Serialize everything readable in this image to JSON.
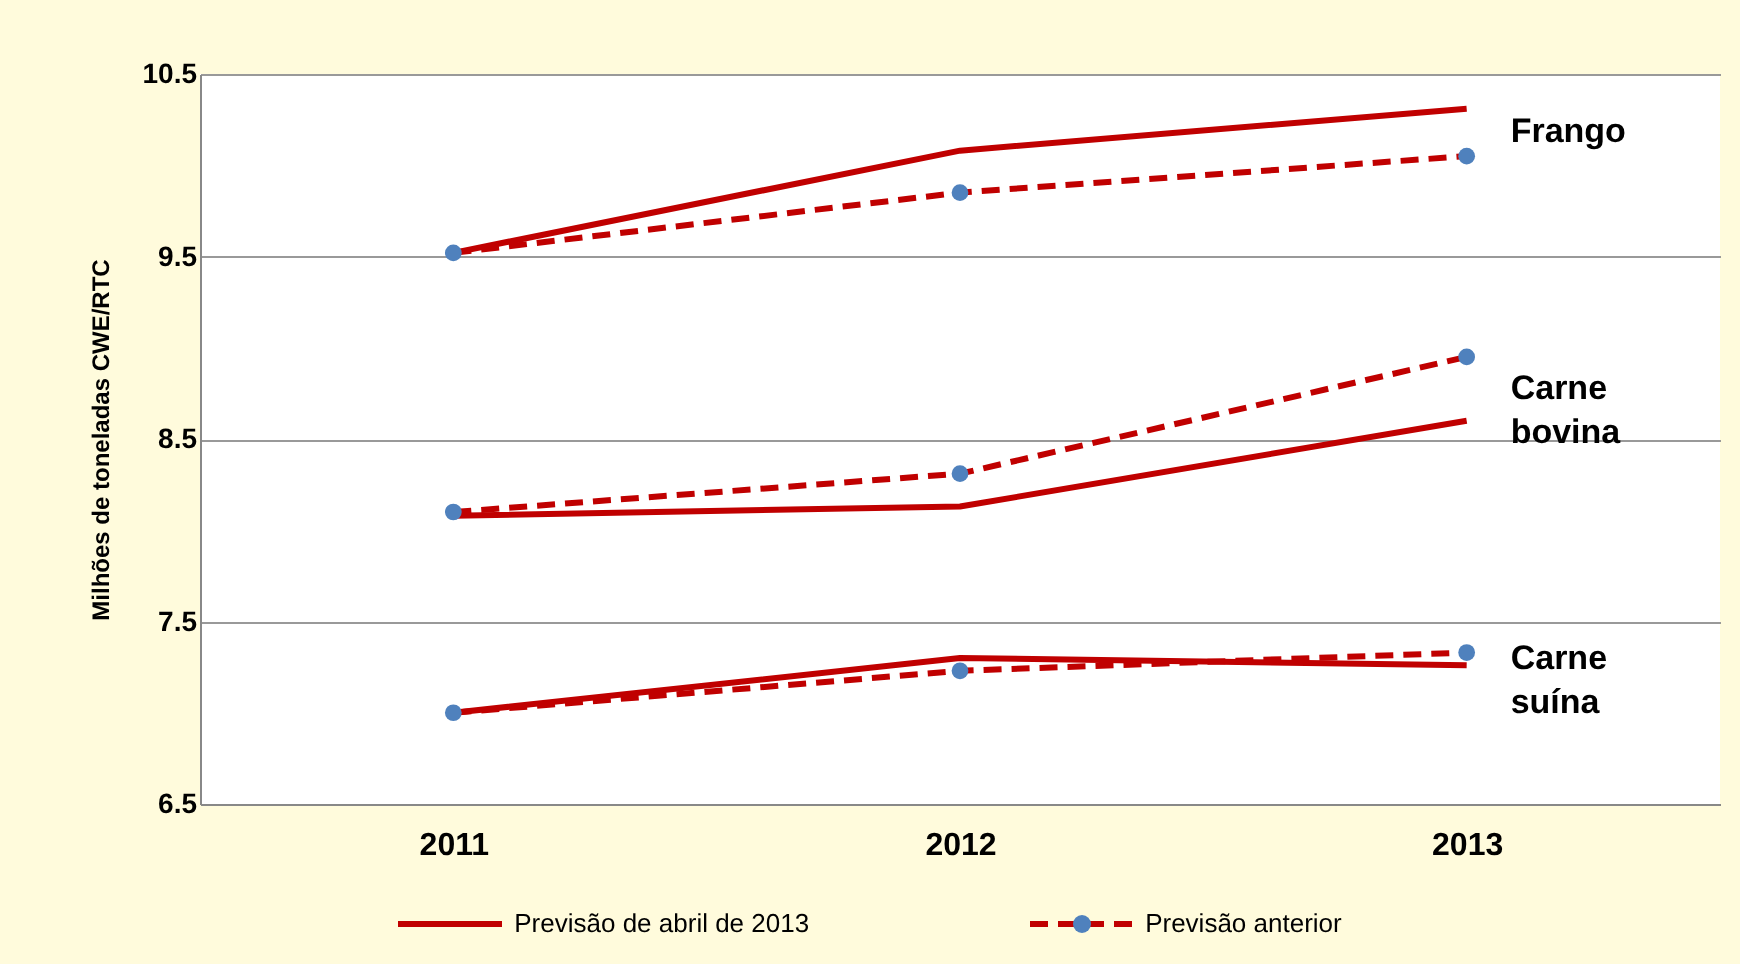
{
  "chart_data": {
    "type": "line",
    "ylabel": "Milhões de toneladas CWE/RTC",
    "categories": [
      "2011",
      "2012",
      "2013"
    ],
    "ylim": [
      6.5,
      10.5
    ],
    "yticks": [
      6.5,
      7.5,
      8.5,
      9.5,
      10.5
    ],
    "grid": "y",
    "legend": "bottom",
    "series": [
      {
        "name": "Previsão de abril de 2013",
        "color": "#c00000",
        "line_style": "solid",
        "marker": "none",
        "values": [
          9.52,
          10.08,
          10.31
        ]
      },
      {
        "name": "Previsão anterior",
        "color": "#c00000",
        "line_style": "dashed",
        "marker": "circle",
        "values": [
          9.52,
          9.85,
          10.05
        ]
      },
      {
        "color": "#c00000",
        "line_style": "solid",
        "marker": "none",
        "values": [
          8.08,
          8.13,
          8.6
        ]
      },
      {
        "color": "#c00000",
        "line_style": "dashed",
        "marker": "circle",
        "values": [
          8.1,
          8.31,
          8.95
        ]
      },
      {
        "color": "#c00000",
        "line_style": "solid",
        "marker": "none",
        "values": [
          7.0,
          7.3,
          7.26
        ]
      },
      {
        "color": "#c00000",
        "line_style": "dashed",
        "marker": "circle",
        "values": [
          7.0,
          7.23,
          7.33
        ]
      }
    ],
    "annotations": [
      "Frango",
      "Carne bovina",
      "Carne suína"
    ]
  }
}
